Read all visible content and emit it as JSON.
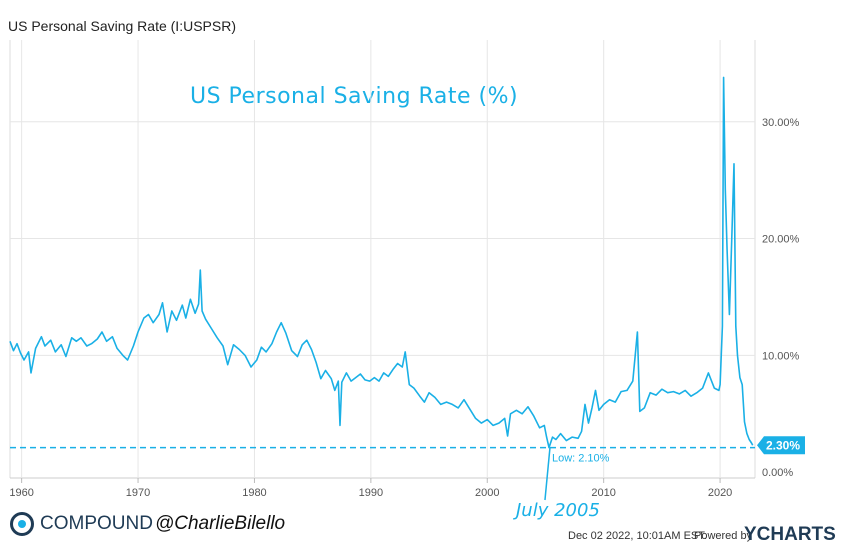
{
  "chart_data": {
    "type": "line",
    "title": "US Personal Saving Rate (I:USPSR)",
    "overlay_title": "US Personal Saving Rate (%)",
    "xlabel": "",
    "ylabel": "",
    "x_ticks": [
      "1960",
      "1970",
      "1980",
      "1990",
      "2000",
      "2010",
      "2020"
    ],
    "y_ticks": [
      "0.00%",
      "10.00%",
      "20.00%",
      "30.00%"
    ],
    "xlim": [
      1959,
      2023
    ],
    "ylim": [
      -0.5,
      37
    ],
    "grid": true,
    "series_color": "#1ab0e6",
    "series": [
      {
        "values": [
          [
            1959.0,
            11.2
          ],
          [
            1959.3,
            10.4
          ],
          [
            1959.6,
            11.0
          ],
          [
            1959.9,
            10.2
          ],
          [
            1960.2,
            9.6
          ],
          [
            1960.6,
            10.3
          ],
          [
            1960.8,
            8.5
          ],
          [
            1961.2,
            10.6
          ],
          [
            1961.7,
            11.6
          ],
          [
            1962.0,
            10.8
          ],
          [
            1962.5,
            11.3
          ],
          [
            1962.9,
            10.3
          ],
          [
            1963.4,
            10.9
          ],
          [
            1963.8,
            9.9
          ],
          [
            1964.3,
            11.5
          ],
          [
            1964.7,
            11.2
          ],
          [
            1965.1,
            11.5
          ],
          [
            1965.6,
            10.8
          ],
          [
            1966.0,
            11.0
          ],
          [
            1966.5,
            11.4
          ],
          [
            1966.9,
            12.0
          ],
          [
            1967.3,
            11.2
          ],
          [
            1967.8,
            11.6
          ],
          [
            1968.2,
            10.6
          ],
          [
            1968.7,
            10.0
          ],
          [
            1969.1,
            9.6
          ],
          [
            1969.6,
            10.8
          ],
          [
            1970.0,
            12.0
          ],
          [
            1970.5,
            13.2
          ],
          [
            1970.9,
            13.5
          ],
          [
            1971.3,
            12.8
          ],
          [
            1971.8,
            13.5
          ],
          [
            1972.1,
            14.5
          ],
          [
            1972.5,
            12.0
          ],
          [
            1972.9,
            13.8
          ],
          [
            1973.3,
            13.0
          ],
          [
            1973.8,
            14.3
          ],
          [
            1974.1,
            13.2
          ],
          [
            1974.5,
            14.8
          ],
          [
            1974.9,
            13.6
          ],
          [
            1975.2,
            14.4
          ],
          [
            1975.35,
            17.3
          ],
          [
            1975.5,
            13.8
          ],
          [
            1975.8,
            13.1
          ],
          [
            1976.3,
            12.3
          ],
          [
            1976.8,
            11.5
          ],
          [
            1977.3,
            10.8
          ],
          [
            1977.7,
            9.2
          ],
          [
            1978.2,
            10.9
          ],
          [
            1978.7,
            10.5
          ],
          [
            1979.2,
            10.0
          ],
          [
            1979.7,
            9.0
          ],
          [
            1980.2,
            9.6
          ],
          [
            1980.6,
            10.7
          ],
          [
            1981.0,
            10.3
          ],
          [
            1981.5,
            11.0
          ],
          [
            1981.9,
            12.0
          ],
          [
            1982.3,
            12.8
          ],
          [
            1982.7,
            11.9
          ],
          [
            1983.2,
            10.4
          ],
          [
            1983.7,
            9.9
          ],
          [
            1984.1,
            10.9
          ],
          [
            1984.5,
            11.3
          ],
          [
            1984.9,
            10.5
          ],
          [
            1985.3,
            9.4
          ],
          [
            1985.7,
            8.0
          ],
          [
            1986.1,
            8.7
          ],
          [
            1986.6,
            8.0
          ],
          [
            1986.9,
            7.0
          ],
          [
            1987.2,
            7.8
          ],
          [
            1987.35,
            4.0
          ],
          [
            1987.5,
            7.7
          ],
          [
            1987.9,
            8.5
          ],
          [
            1988.3,
            7.8
          ],
          [
            1988.7,
            8.1
          ],
          [
            1989.1,
            8.4
          ],
          [
            1989.5,
            7.9
          ],
          [
            1989.9,
            7.8
          ],
          [
            1990.3,
            8.1
          ],
          [
            1990.7,
            7.8
          ],
          [
            1991.1,
            8.5
          ],
          [
            1991.5,
            8.2
          ],
          [
            1991.9,
            8.8
          ],
          [
            1992.3,
            9.3
          ],
          [
            1992.7,
            9.0
          ],
          [
            1992.95,
            10.3
          ],
          [
            1993.3,
            7.5
          ],
          [
            1993.7,
            7.2
          ],
          [
            1994.2,
            6.5
          ],
          [
            1994.6,
            6.0
          ],
          [
            1995.0,
            6.8
          ],
          [
            1995.5,
            6.4
          ],
          [
            1996.0,
            5.8
          ],
          [
            1996.5,
            6.0
          ],
          [
            1997.0,
            5.8
          ],
          [
            1997.5,
            5.5
          ],
          [
            1998.0,
            6.2
          ],
          [
            1998.5,
            5.4
          ],
          [
            1999.0,
            4.6
          ],
          [
            1999.5,
            4.2
          ],
          [
            2000.0,
            4.5
          ],
          [
            2000.5,
            4.0
          ],
          [
            2001.0,
            4.2
          ],
          [
            2001.5,
            4.6
          ],
          [
            2001.75,
            3.1
          ],
          [
            2002.0,
            5.0
          ],
          [
            2002.5,
            5.3
          ],
          [
            2003.0,
            5.0
          ],
          [
            2003.5,
            5.6
          ],
          [
            2004.0,
            4.8
          ],
          [
            2004.5,
            3.8
          ],
          [
            2004.9,
            4.0
          ],
          [
            2005.1,
            3.0
          ],
          [
            2005.3,
            2.1
          ],
          [
            2005.6,
            3.0
          ],
          [
            2005.9,
            2.8
          ],
          [
            2006.3,
            3.3
          ],
          [
            2006.8,
            2.7
          ],
          [
            2007.3,
            3.0
          ],
          [
            2007.8,
            2.9
          ],
          [
            2008.1,
            3.5
          ],
          [
            2008.4,
            5.8
          ],
          [
            2008.7,
            4.2
          ],
          [
            2009.0,
            5.5
          ],
          [
            2009.3,
            7.0
          ],
          [
            2009.6,
            5.3
          ],
          [
            2010.0,
            5.8
          ],
          [
            2010.5,
            6.2
          ],
          [
            2011.0,
            6.0
          ],
          [
            2011.5,
            6.9
          ],
          [
            2012.0,
            7.0
          ],
          [
            2012.5,
            7.8
          ],
          [
            2012.9,
            12.0
          ],
          [
            2013.1,
            5.2
          ],
          [
            2013.5,
            5.5
          ],
          [
            2014.0,
            6.8
          ],
          [
            2014.5,
            6.6
          ],
          [
            2015.0,
            7.1
          ],
          [
            2015.5,
            6.8
          ],
          [
            2016.0,
            6.9
          ],
          [
            2016.5,
            6.7
          ],
          [
            2017.0,
            7.0
          ],
          [
            2017.5,
            6.5
          ],
          [
            2018.0,
            6.8
          ],
          [
            2018.5,
            7.2
          ],
          [
            2019.0,
            8.5
          ],
          [
            2019.5,
            7.2
          ],
          [
            2019.9,
            7.0
          ],
          [
            2020.0,
            7.5
          ],
          [
            2020.2,
            12.5
          ],
          [
            2020.3,
            33.8
          ],
          [
            2020.45,
            24.2
          ],
          [
            2020.6,
            19.0
          ],
          [
            2020.8,
            13.5
          ],
          [
            2021.0,
            19.8
          ],
          [
            2021.2,
            26.4
          ],
          [
            2021.35,
            12.5
          ],
          [
            2021.5,
            10.0
          ],
          [
            2021.7,
            8.1
          ],
          [
            2021.9,
            7.5
          ],
          [
            2022.1,
            4.3
          ],
          [
            2022.3,
            3.3
          ],
          [
            2022.5,
            2.8
          ],
          [
            2022.7,
            2.5
          ],
          [
            2022.8,
            2.3
          ]
        ]
      }
    ],
    "reference_line": {
      "value": 2.1,
      "style": "dashed"
    },
    "low_label": "Low: 2.10%",
    "low_marker_x": 2005.3,
    "last_value_label": "2.30%",
    "annotation_text": "July 2005"
  },
  "branding": {
    "compound_name": "COMPOUND",
    "handle": "@CharlieBilello"
  },
  "footer": {
    "timestamp": "Dec 02 2022, 10:01AM EST.",
    "powered_by": "Powered by",
    "provider": "YCHARTS"
  }
}
